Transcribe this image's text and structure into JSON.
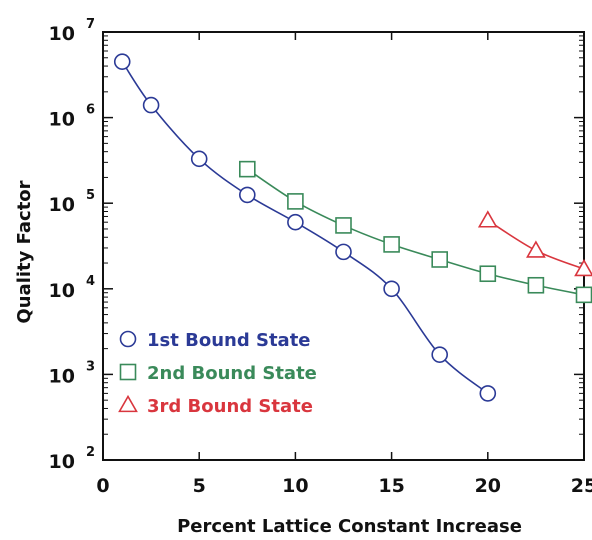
{
  "chart_data": {
    "type": "line",
    "title": "",
    "xlabel": "Percent Lattice Constant Increase",
    "ylabel": "Quality Factor",
    "xlim": [
      0,
      25
    ],
    "ylim": [
      100,
      10000000
    ],
    "yscale": "log",
    "x_ticks": [
      "0",
      "5",
      "10",
      "15",
      "20",
      "25"
    ],
    "y_ticks": [
      {
        "base": "10",
        "exp": "2"
      },
      {
        "base": "10",
        "exp": "3"
      },
      {
        "base": "10",
        "exp": "4"
      },
      {
        "base": "10",
        "exp": "5"
      },
      {
        "base": "10",
        "exp": "6"
      },
      {
        "base": "10",
        "exp": "7"
      }
    ],
    "legend_position": "bottom-left",
    "grid": false,
    "series": [
      {
        "name": "1st Bound State",
        "color": "#2b3a96",
        "marker": "circle",
        "x": [
          1,
          2.5,
          5,
          7.5,
          10,
          12.5,
          15,
          17.5,
          20
        ],
        "y": [
          4500000,
          1400000,
          330000,
          125000,
          60000,
          27000,
          10000,
          1700,
          600
        ]
      },
      {
        "name": "2nd Bound State",
        "color": "#3a8a5a",
        "marker": "square",
        "x": [
          7.5,
          10,
          12.5,
          15,
          17.5,
          20,
          22.5,
          25
        ],
        "y": [
          250000,
          105000,
          55000,
          33000,
          22000,
          15000,
          11000,
          8500
        ]
      },
      {
        "name": "3rd Bound State",
        "color": "#d9363e",
        "marker": "triangle",
        "x": [
          20,
          22.5,
          25
        ],
        "y": [
          63000,
          28000,
          17000
        ]
      }
    ]
  }
}
